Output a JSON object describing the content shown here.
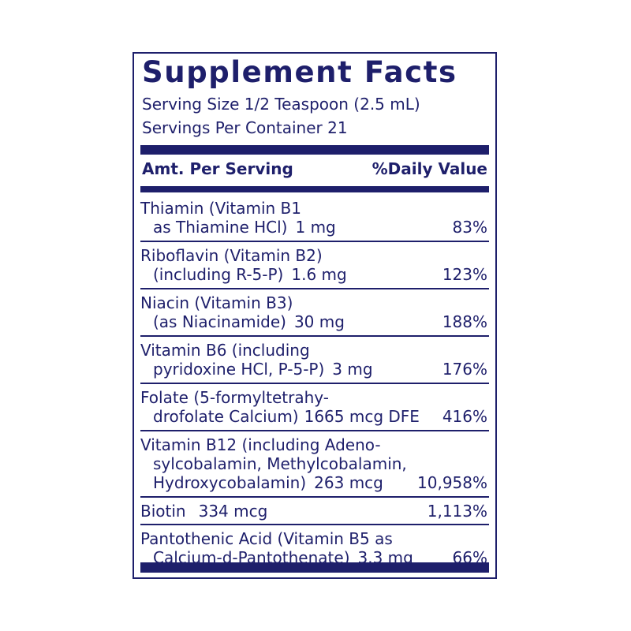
{
  "title": "Supplement Facts",
  "serving_size": "Serving Size 1/2 Teaspoon (2.5 mL)",
  "servings_per_container": "Servings Per Container 21",
  "header": {
    "amount": "Amt. Per Serving",
    "daily_value": "%Daily Value"
  },
  "nutrients": [
    {
      "lines": [
        "Thiamin (Vitamin B1",
        "as Thiamine HCl)"
      ],
      "amount": "1 mg",
      "dv": "83%"
    },
    {
      "lines": [
        "Riboflavin (Vitamin B2)",
        "(including R-5-P)"
      ],
      "amount": "1.6 mg",
      "dv": "123%"
    },
    {
      "lines": [
        "Niacin (Vitamin B3)",
        "(as Niacinamide)"
      ],
      "amount": "30 mg",
      "dv": "188%"
    },
    {
      "lines": [
        "Vitamin B6 (including",
        "pyridoxine HCl, P-5-P)"
      ],
      "amount": "3 mg",
      "dv": "176%"
    },
    {
      "lines": [
        "Folate (5-formyltetrahy-",
        "drofolate Calcium)"
      ],
      "amount": "1665 mcg DFE",
      "dv": "416%"
    },
    {
      "lines": [
        "Vitamin B12 (including Adeno-",
        "sylcobalamin, Methylcobalamin,",
        "Hydroxycobalamin)"
      ],
      "amount": "263 mcg",
      "dv": "10,958%"
    },
    {
      "lines": [
        "Biotin"
      ],
      "amount": "334 mcg",
      "dv": "1,113%"
    },
    {
      "lines": [
        "Pantothenic Acid (Vitamin B5 as",
        "Calcium-d-Pantothenate)"
      ],
      "amount": "3.3 mg",
      "dv": "66%"
    }
  ],
  "colors": {
    "ink": "#1e1f6b",
    "background": "#ffffff"
  }
}
